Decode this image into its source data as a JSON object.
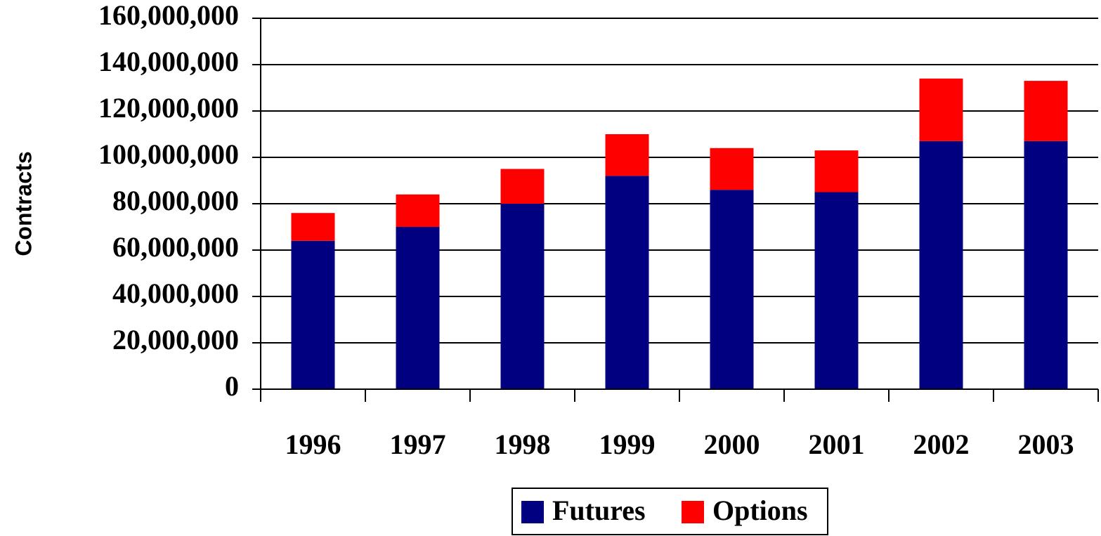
{
  "chart_data": {
    "type": "stacked_bar",
    "y_axis_label": "Contracts",
    "categories": [
      "1996",
      "1997",
      "1998",
      "1999",
      "2000",
      "2001",
      "2002",
      "2003"
    ],
    "series": [
      {
        "name": "Futures",
        "color": "#000080",
        "values": [
          64000000,
          70000000,
          80000000,
          92000000,
          86000000,
          85000000,
          107000000,
          107000000
        ]
      },
      {
        "name": "Options",
        "color": "#ff0000",
        "values": [
          12000000,
          14000000,
          15000000,
          18000000,
          18000000,
          18000000,
          27000000,
          26000000
        ]
      }
    ],
    "ylim": [
      0,
      160000000
    ],
    "yticks": [
      0,
      {
        "value": 20000000,
        "label": "20,000,000"
      },
      {
        "value": 40000000,
        "label": "40,000,000"
      },
      {
        "value": 60000000,
        "label": "60,000,000"
      },
      {
        "value": 80000000,
        "label": "80,000,000"
      },
      {
        "value": 100000000,
        "label": "100,000,000"
      },
      {
        "value": 120000000,
        "label": "120,000,000"
      },
      {
        "value": 140000000,
        "label": "140,000,000"
      },
      {
        "value": 160000000,
        "label": "160,000,000"
      }
    ],
    "grid": true,
    "legend": "bottom"
  }
}
